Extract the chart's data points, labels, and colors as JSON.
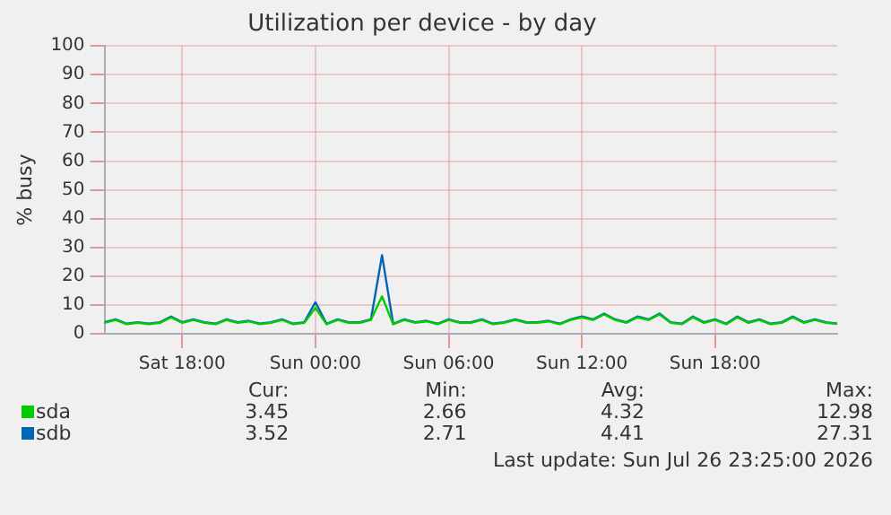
{
  "chart_data": {
    "type": "line",
    "title": "Utilization per device - by day",
    "ylabel": "% busy",
    "categories": [
      null,
      null,
      null,
      null,
      null,
      null,
      null,
      "Sat 18:00",
      null,
      null,
      null,
      null,
      null,
      null,
      null,
      null,
      null,
      null,
      null,
      "Sun 00:00",
      null,
      null,
      null,
      null,
      null,
      null,
      null,
      null,
      null,
      null,
      null,
      "Sun 06:00",
      null,
      null,
      null,
      null,
      null,
      null,
      null,
      null,
      null,
      null,
      null,
      "Sun 12:00",
      null,
      null,
      null,
      null,
      null,
      null,
      null,
      null,
      null,
      null,
      null,
      "Sun 18:00",
      null,
      null,
      null,
      null,
      null,
      null,
      null,
      null,
      null,
      null,
      null
    ],
    "series": [
      {
        "name": "sda",
        "color": "#00cc00",
        "values": [
          3.8,
          4.8,
          3.3,
          3.8,
          3.3,
          3.8,
          5.7,
          3.8,
          4.8,
          3.8,
          3.3,
          4.8,
          3.8,
          4.3,
          3.3,
          3.8,
          4.8,
          3.3,
          3.8,
          9,
          3.3,
          4.8,
          3.8,
          3.8,
          4.8,
          13,
          3.3,
          4.8,
          3.8,
          4.3,
          3.3,
          4.8,
          3.8,
          3.8,
          4.8,
          3.3,
          3.8,
          4.8,
          3.8,
          3.8,
          4.3,
          3.3,
          4.8,
          5.7,
          4.8,
          6.7,
          4.8,
          3.8,
          5.7,
          4.8,
          6.7,
          3.8,
          3.3,
          5.7,
          3.8,
          4.8,
          3.3,
          5.7,
          3.8,
          4.8,
          3.3,
          3.8,
          5.7,
          3.8,
          4.8,
          3.8,
          3.4
        ]
      },
      {
        "name": "sdb",
        "color": "#0066b3",
        "values": [
          4,
          5,
          3.5,
          4,
          3.5,
          4,
          6,
          4,
          5,
          4,
          3.5,
          5,
          4,
          4.5,
          3.5,
          4,
          5,
          3.5,
          4,
          11,
          3.5,
          5,
          4,
          4,
          5,
          27.3,
          3.5,
          5,
          4,
          4.5,
          3.5,
          5,
          4,
          4,
          5,
          3.5,
          4,
          5,
          4,
          4,
          4.5,
          3.5,
          5,
          6,
          5,
          7,
          5,
          4,
          6,
          5,
          7,
          4,
          3.5,
          6,
          4,
          5,
          3.5,
          6,
          4,
          5,
          3.5,
          4,
          6,
          4,
          5,
          4,
          3.5
        ]
      }
    ],
    "ylim": [
      0,
      100
    ],
    "yticks": [
      0,
      10,
      20,
      30,
      40,
      50,
      60,
      70,
      80,
      90,
      100
    ],
    "grid": true,
    "legend": "bottom",
    "marker": "none",
    "line_style": "solid",
    "annotations": [
      "Cur:",
      "Min:",
      "Avg:",
      "Max:",
      "3.45",
      "2.66",
      "4.32",
      "12.98",
      "3.52",
      "2.71",
      "4.41",
      "27.31",
      "Last update: Sun Jul 26 23:25:00 2026"
    ]
  }
}
